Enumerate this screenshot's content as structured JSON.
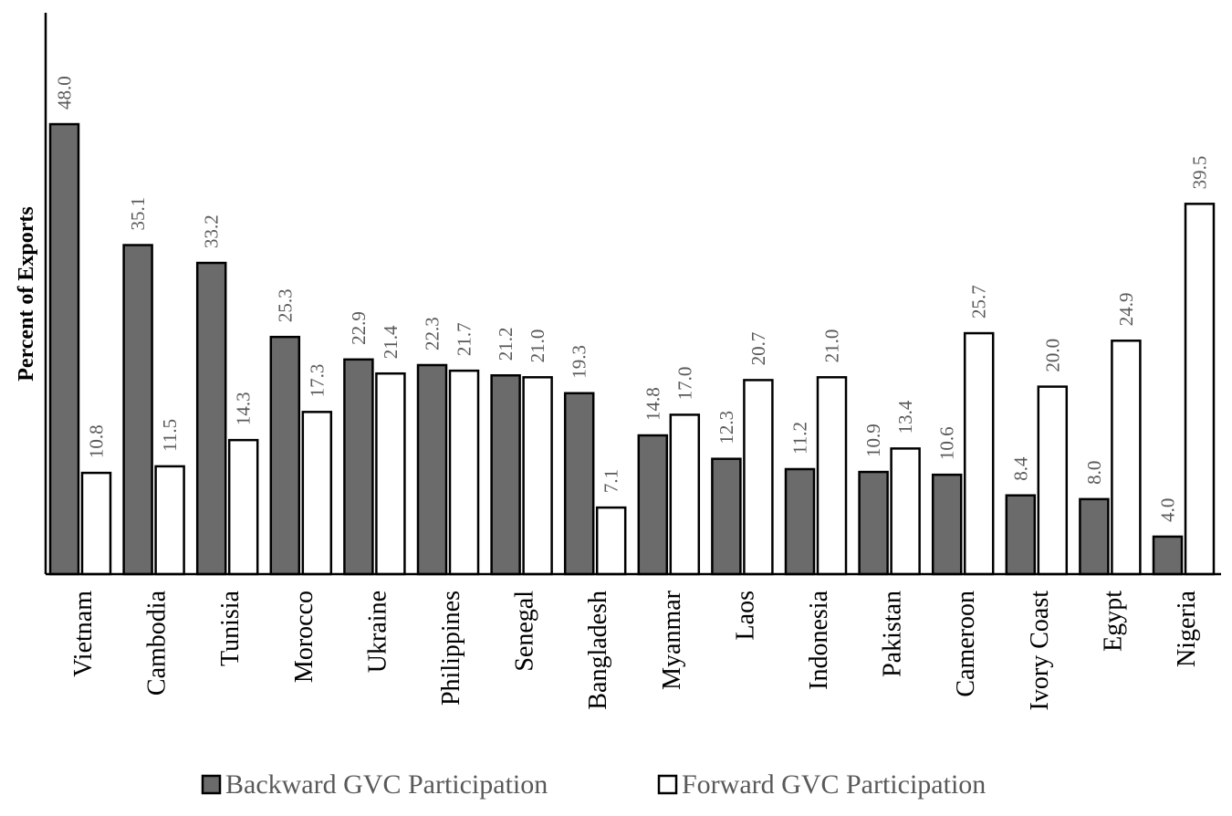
{
  "chart_data": {
    "type": "bar",
    "ylabel": "Percent of Exports",
    "xlabel": "",
    "ylim": [
      0,
      50
    ],
    "grid": false,
    "legend_position": "bottom",
    "categories": [
      "Vietnam",
      "Cambodia",
      "Tunisia",
      "Morocco",
      "Ukraine",
      "Philippines",
      "Senegal",
      "Bangladesh",
      "Myanmar",
      "Laos",
      "Indonesia",
      "Pakistan",
      "Cameroon",
      "Ivory Coast",
      "Egypt",
      "Nigeria"
    ],
    "series": [
      {
        "name": "Backward GVC Participation",
        "color": "#6b6b6b",
        "values": [
          48.0,
          35.1,
          33.2,
          25.3,
          22.9,
          22.3,
          21.2,
          19.3,
          14.8,
          12.3,
          11.2,
          10.9,
          10.6,
          8.4,
          8.0,
          4.0
        ],
        "labels": [
          "48.0",
          "35.1",
          "33.2",
          "25.3",
          "22.9",
          "22.3",
          "21.2",
          "19.3",
          "14.8",
          "12.3",
          "11.2",
          "10.9",
          "10.6",
          "8.4",
          "8.0",
          "4.0"
        ]
      },
      {
        "name": "Forward GVC Participation",
        "color": "#ffffff",
        "values": [
          10.8,
          11.5,
          14.3,
          17.3,
          21.4,
          21.7,
          21.0,
          7.1,
          17.0,
          20.7,
          21.0,
          13.4,
          25.7,
          20.0,
          24.9,
          39.5
        ],
        "labels": [
          "10.8",
          "11.5",
          "14.3",
          "17.3",
          "21.4",
          "21.7",
          "21.0",
          "7.1",
          "17.0",
          "20.7",
          "21.0",
          "13.4",
          "25.7",
          "20.0",
          "24.9",
          "39.5"
        ]
      }
    ]
  }
}
